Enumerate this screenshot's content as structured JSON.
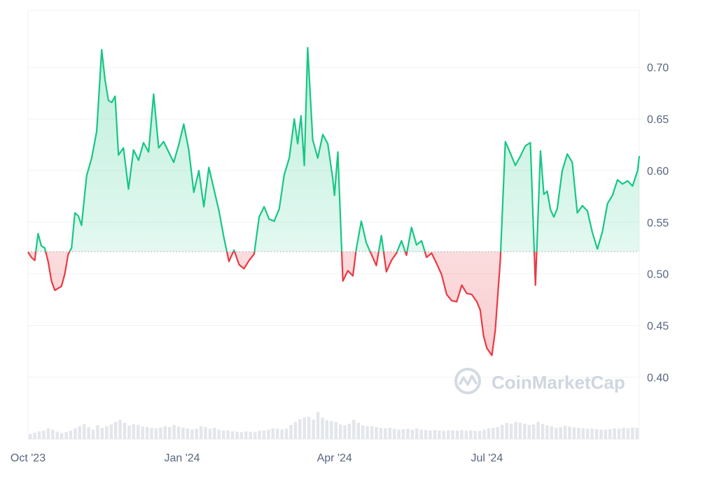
{
  "watermark": {
    "text": "CoinMarketCap",
    "icon": "coinmarketcap-logo-icon"
  },
  "colors": {
    "up_line": "#16c784",
    "down_line": "#ea3943",
    "up_fill_top": "#16c784",
    "down_fill_bottom": "#ea3943",
    "baseline": "#9aa3ad",
    "grid": "#eff2f5",
    "axis_text": "#58667e",
    "volume_bar": "#e3e6ea",
    "watermark": "#cfd6e0"
  },
  "chart_data": {
    "type": "area",
    "baseline": 0.5215,
    "xlim": [
      "2023-10-01",
      "2024-09-30"
    ],
    "ylim": [
      0.34,
      0.755
    ],
    "y_ticks": [
      {
        "value": 0.7,
        "label": "0.70"
      },
      {
        "value": 0.65,
        "label": "0.65"
      },
      {
        "value": 0.6,
        "label": "0.60"
      },
      {
        "value": 0.55,
        "label": "0.55"
      },
      {
        "value": 0.5,
        "label": "0.50"
      },
      {
        "value": 0.45,
        "label": "0.45"
      },
      {
        "value": 0.4,
        "label": "0.40"
      }
    ],
    "x_ticks": [
      {
        "date": "2023-10-01",
        "label": "Oct '23"
      },
      {
        "date": "2024-01-01",
        "label": "Jan '24"
      },
      {
        "date": "2024-04-01",
        "label": "Apr '24"
      },
      {
        "date": "2024-07-01",
        "label": "Jul '24"
      }
    ],
    "grid": true,
    "legend": "none",
    "series": [
      {
        "x": [
          "2023-10-01",
          "2023-10-03",
          "2023-10-05",
          "2023-10-07",
          "2023-10-09",
          "2023-10-11",
          "2023-10-13",
          "2023-10-15",
          "2023-10-17",
          "2023-10-19",
          "2023-10-21",
          "2023-10-23",
          "2023-10-25",
          "2023-10-27",
          "2023-10-29",
          "2023-10-31",
          "2023-11-02",
          "2023-11-05",
          "2023-11-08",
          "2023-11-11",
          "2023-11-14",
          "2023-11-16",
          "2023-11-18",
          "2023-11-20",
          "2023-11-22",
          "2023-11-24",
          "2023-11-27",
          "2023-11-30",
          "2023-12-03",
          "2023-12-06",
          "2023-12-09",
          "2023-12-12",
          "2023-12-15",
          "2023-12-18",
          "2023-12-21",
          "2023-12-24",
          "2023-12-27",
          "2023-12-30",
          "2024-01-02",
          "2024-01-05",
          "2024-01-08",
          "2024-01-11",
          "2024-01-14",
          "2024-01-17",
          "2024-01-20",
          "2024-01-23",
          "2024-01-26",
          "2024-01-29",
          "2024-02-01",
          "2024-02-04",
          "2024-02-07",
          "2024-02-10",
          "2024-02-13",
          "2024-02-16",
          "2024-02-19",
          "2024-02-22",
          "2024-02-25",
          "2024-02-28",
          "2024-03-02",
          "2024-03-05",
          "2024-03-08",
          "2024-03-10",
          "2024-03-12",
          "2024-03-14",
          "2024-03-16",
          "2024-03-19",
          "2024-03-22",
          "2024-03-25",
          "2024-03-28",
          "2024-03-31",
          "2024-04-01",
          "2024-04-03",
          "2024-04-06",
          "2024-04-09",
          "2024-04-12",
          "2024-04-14",
          "2024-04-17",
          "2024-04-20",
          "2024-04-23",
          "2024-04-26",
          "2024-04-29",
          "2024-05-02",
          "2024-05-05",
          "2024-05-08",
          "2024-05-11",
          "2024-05-14",
          "2024-05-17",
          "2024-05-20",
          "2024-05-23",
          "2024-05-26",
          "2024-05-29",
          "2024-06-01",
          "2024-06-04",
          "2024-06-07",
          "2024-06-10",
          "2024-06-13",
          "2024-06-16",
          "2024-06-19",
          "2024-06-22",
          "2024-06-25",
          "2024-06-27",
          "2024-06-29",
          "2024-07-01",
          "2024-07-04",
          "2024-07-06",
          "2024-07-09",
          "2024-07-12",
          "2024-07-15",
          "2024-07-18",
          "2024-07-21",
          "2024-07-24",
          "2024-07-27",
          "2024-07-30",
          "2024-08-02",
          "2024-08-04",
          "2024-08-06",
          "2024-08-08",
          "2024-08-10",
          "2024-08-12",
          "2024-08-15",
          "2024-08-18",
          "2024-08-21",
          "2024-08-24",
          "2024-08-27",
          "2024-08-30",
          "2024-09-02",
          "2024-09-05",
          "2024-09-08",
          "2024-09-11",
          "2024-09-14",
          "2024-09-17",
          "2024-09-20",
          "2024-09-23",
          "2024-09-26",
          "2024-09-29",
          "2024-09-30"
        ],
        "y": [
          0.521,
          0.516,
          0.513,
          0.539,
          0.527,
          0.525,
          0.512,
          0.493,
          0.484,
          0.486,
          0.488,
          0.5,
          0.519,
          0.525,
          0.559,
          0.556,
          0.547,
          0.595,
          0.612,
          0.638,
          0.717,
          0.688,
          0.668,
          0.666,
          0.672,
          0.615,
          0.622,
          0.582,
          0.62,
          0.61,
          0.627,
          0.618,
          0.674,
          0.622,
          0.628,
          0.618,
          0.608,
          0.625,
          0.645,
          0.62,
          0.579,
          0.6,
          0.565,
          0.603,
          0.582,
          0.561,
          0.535,
          0.512,
          0.523,
          0.509,
          0.505,
          0.513,
          0.519,
          0.555,
          0.565,
          0.553,
          0.551,
          0.563,
          0.596,
          0.612,
          0.65,
          0.626,
          0.653,
          0.605,
          0.719,
          0.63,
          0.612,
          0.635,
          0.626,
          0.592,
          0.576,
          0.618,
          0.493,
          0.503,
          0.498,
          0.524,
          0.551,
          0.53,
          0.519,
          0.508,
          0.537,
          0.502,
          0.513,
          0.52,
          0.532,
          0.518,
          0.545,
          0.528,
          0.532,
          0.516,
          0.52,
          0.51,
          0.499,
          0.48,
          0.474,
          0.473,
          0.489,
          0.481,
          0.48,
          0.473,
          0.465,
          0.44,
          0.428,
          0.421,
          0.445,
          0.513,
          0.628,
          0.617,
          0.605,
          0.614,
          0.624,
          0.627,
          0.489,
          0.619,
          0.577,
          0.58,
          0.562,
          0.555,
          0.563,
          0.6,
          0.616,
          0.608,
          0.559,
          0.566,
          0.561,
          0.54,
          0.524,
          0.541,
          0.568,
          0.576,
          0.591,
          0.587,
          0.59,
          0.585,
          0.6,
          0.614
        ]
      }
    ],
    "volume": [
      0.012,
      0.015,
      0.018,
      0.02,
      0.025,
      0.022,
      0.017,
      0.014,
      0.016,
      0.02,
      0.025,
      0.03,
      0.035,
      0.028,
      0.022,
      0.032,
      0.026,
      0.03,
      0.034,
      0.04,
      0.045,
      0.038,
      0.032,
      0.035,
      0.033,
      0.029,
      0.028,
      0.026,
      0.025,
      0.027,
      0.03,
      0.028,
      0.033,
      0.029,
      0.027,
      0.025,
      0.022,
      0.024,
      0.03,
      0.028,
      0.024,
      0.026,
      0.022,
      0.02,
      0.02,
      0.018,
      0.017,
      0.016,
      0.018,
      0.017,
      0.016,
      0.019,
      0.02,
      0.022,
      0.025,
      0.024,
      0.022,
      0.024,
      0.033,
      0.04,
      0.046,
      0.05,
      0.052,
      0.045,
      0.063,
      0.05,
      0.044,
      0.042,
      0.04,
      0.034,
      0.032,
      0.036,
      0.045,
      0.038,
      0.032,
      0.03,
      0.03,
      0.028,
      0.026,
      0.025,
      0.026,
      0.024,
      0.022,
      0.023,
      0.024,
      0.022,
      0.025,
      0.022,
      0.021,
      0.02,
      0.021,
      0.02,
      0.019,
      0.02,
      0.021,
      0.02,
      0.021,
      0.02,
      0.02,
      0.019,
      0.019,
      0.022,
      0.025,
      0.026,
      0.028,
      0.033,
      0.038,
      0.036,
      0.04,
      0.038,
      0.036,
      0.033,
      0.034,
      0.04,
      0.035,
      0.032,
      0.03,
      0.026,
      0.028,
      0.031,
      0.029,
      0.027,
      0.026,
      0.025,
      0.024,
      0.024,
      0.023,
      0.022,
      0.022,
      0.023,
      0.025,
      0.024,
      0.026,
      0.025,
      0.027,
      0.026
    ]
  }
}
